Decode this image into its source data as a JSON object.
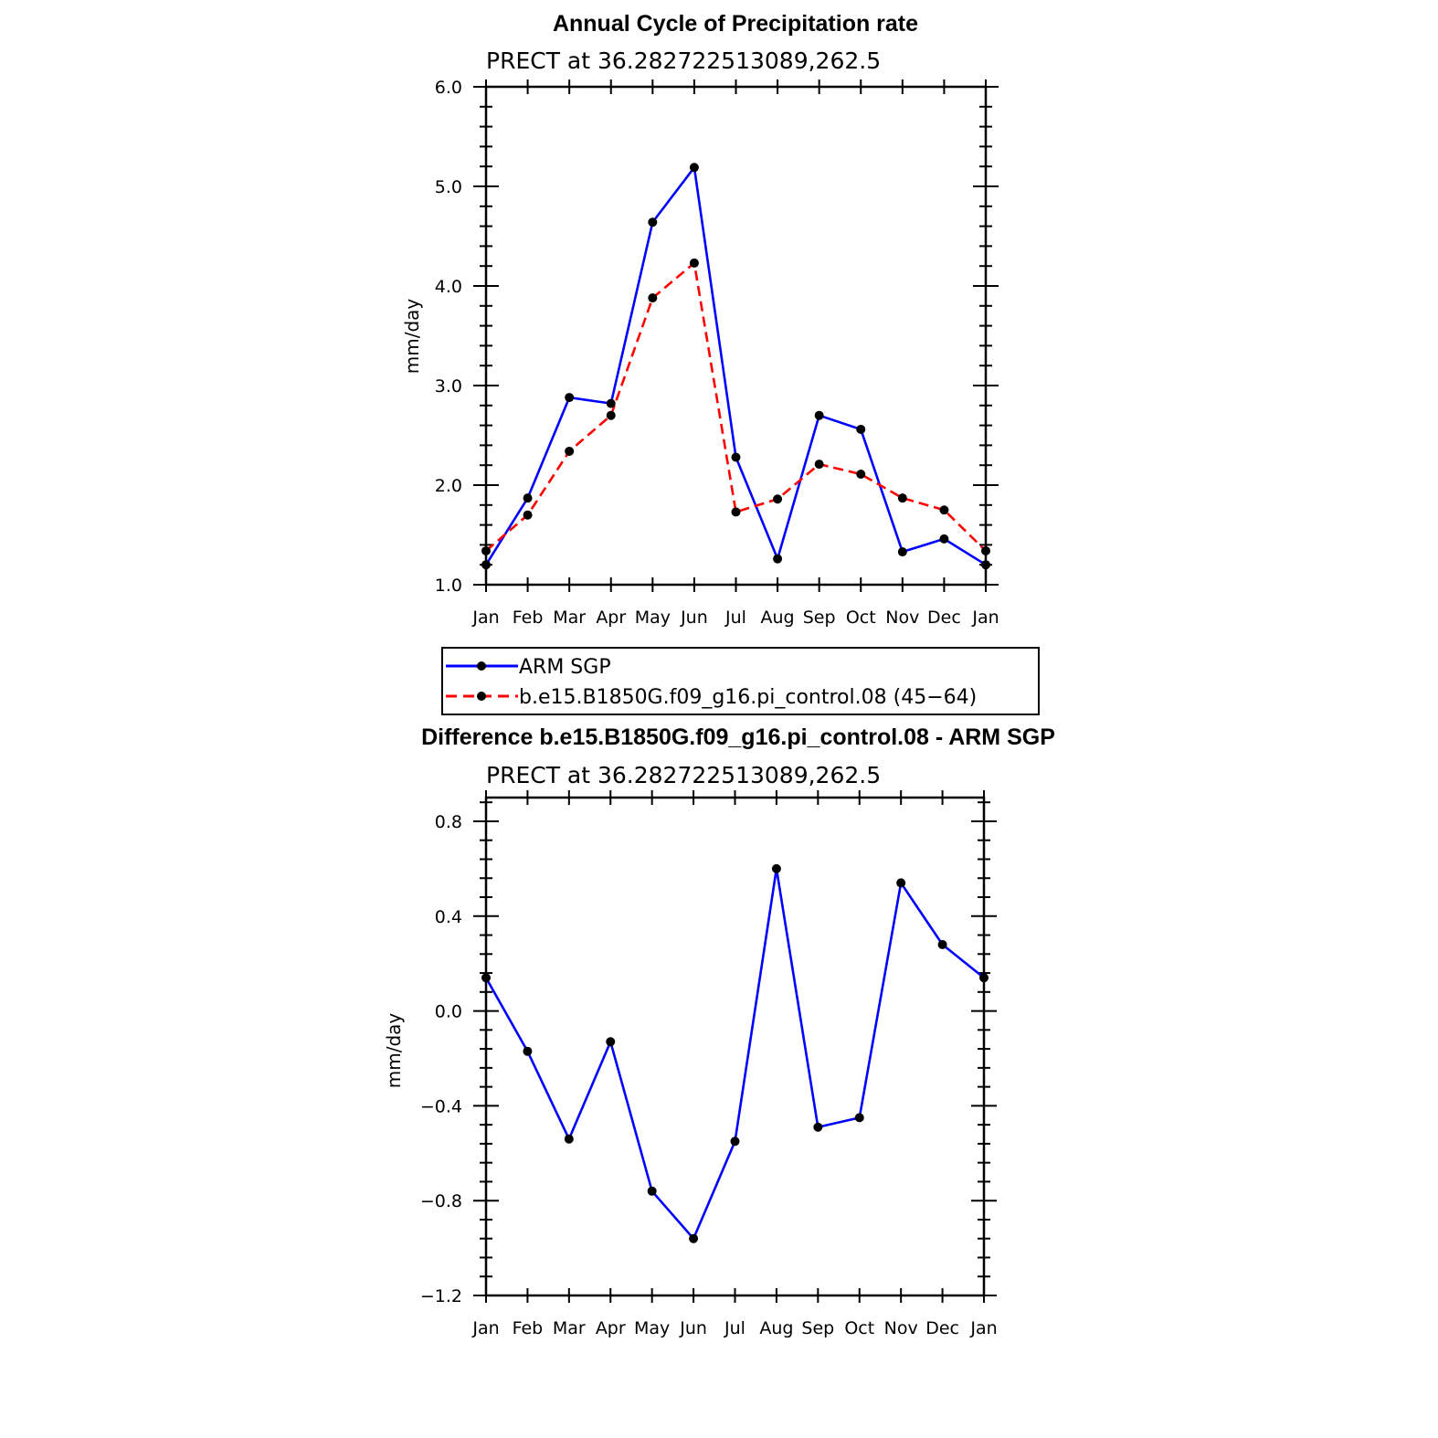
{
  "chart_data": [
    {
      "type": "line",
      "title": "Annual Cycle of Precipitation rate",
      "subtitle": "PRECT at 36.282722513089,262.5",
      "ylabel": "mm/day",
      "xlabel": "",
      "categories": [
        "Jan",
        "Feb",
        "Mar",
        "Apr",
        "May",
        "Jun",
        "Jul",
        "Aug",
        "Sep",
        "Oct",
        "Nov",
        "Dec",
        "Jan"
      ],
      "ylim": [
        1.0,
        6.0
      ],
      "yticks": [
        "1.0",
        "2.0",
        "3.0",
        "4.0",
        "5.0",
        "6.0"
      ],
      "series": [
        {
          "name": "ARM SGP",
          "color": "#0000ff",
          "dash": "solid",
          "values": [
            1.2,
            1.87,
            2.88,
            2.82,
            4.64,
            5.19,
            2.28,
            1.26,
            2.7,
            2.56,
            1.33,
            1.46,
            1.2
          ]
        },
        {
          "name": "b.e15.B1850G.f09_g16.pi_control.08 (45−64)",
          "color": "#ff0000",
          "dash": "dashed",
          "values": [
            1.34,
            1.7,
            2.34,
            2.7,
            3.88,
            4.23,
            1.73,
            1.86,
            2.21,
            2.11,
            1.87,
            1.75,
            1.34
          ]
        }
      ],
      "legend_position": "below"
    },
    {
      "type": "line",
      "title": "Difference b.e15.B1850G.f09_g16.pi_control.08 - ARM SGP",
      "subtitle": "PRECT at 36.282722513089,262.5",
      "ylabel": "mm/day",
      "xlabel": "",
      "categories": [
        "Jan",
        "Feb",
        "Mar",
        "Apr",
        "May",
        "Jun",
        "Jul",
        "Aug",
        "Sep",
        "Oct",
        "Nov",
        "Dec",
        "Jan"
      ],
      "ylim": [
        -1.2,
        0.9
      ],
      "yticks": [
        "−1.2",
        "−0.8",
        "−0.4",
        "0.0",
        "0.4",
        "0.8"
      ],
      "series": [
        {
          "color": "#0000ff",
          "dash": "solid",
          "values": [
            0.14,
            -0.17,
            -0.54,
            -0.13,
            -0.76,
            -0.96,
            -0.55,
            0.6,
            -0.49,
            -0.45,
            0.54,
            0.28,
            0.14
          ]
        }
      ]
    }
  ]
}
